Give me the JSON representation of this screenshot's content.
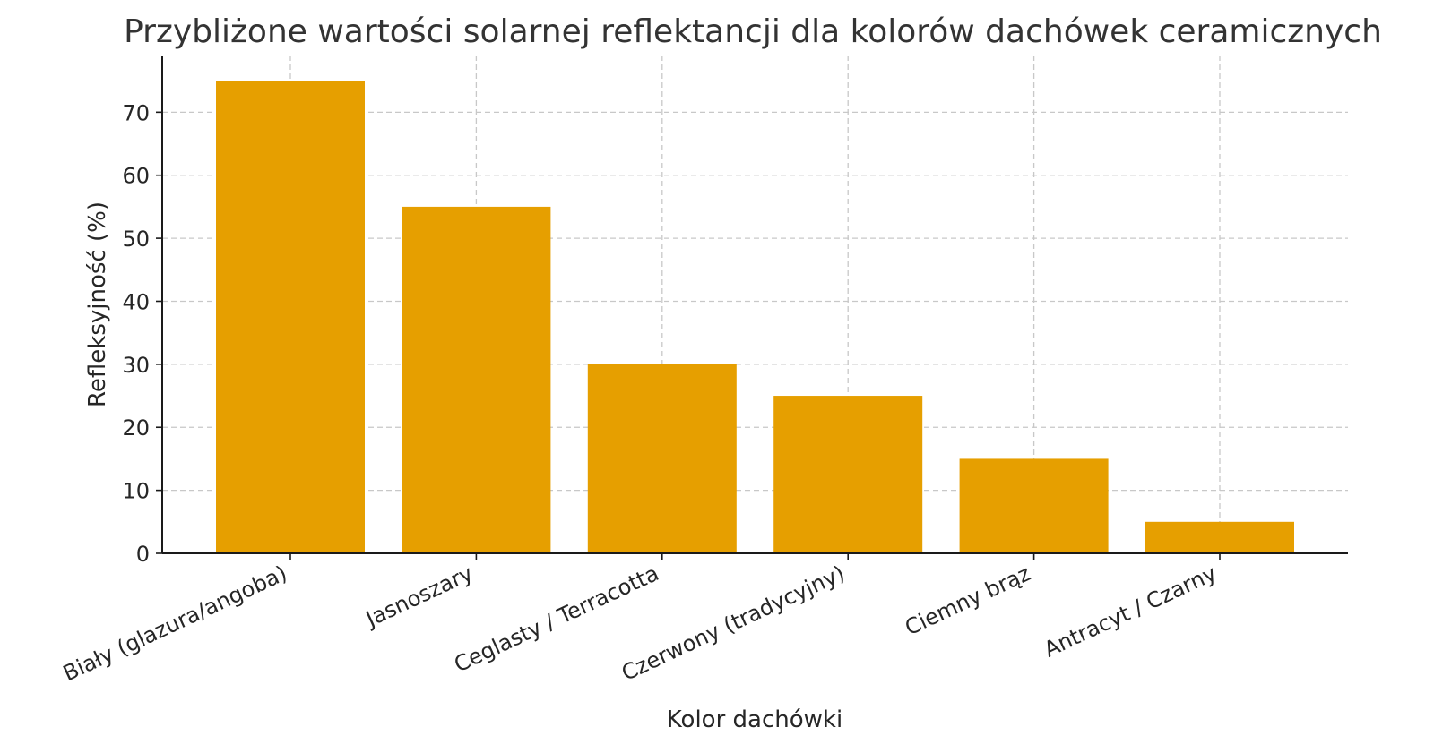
{
  "chart_data": {
    "type": "bar",
    "title": "Przybliżone wartości solarnej reflektancji dla kolorów dachówek ceramicznych",
    "xlabel": "Kolor dachówki",
    "ylabel": "Refleksyjność (%)",
    "categories": [
      "Biały (glazura/angoba)",
      "Jasnoszary",
      "Ceglasty / Terracotta",
      "Czerwony (tradycyjny)",
      "Ciemny brąz",
      "Antracyt / Czarny"
    ],
    "values": [
      75,
      55,
      30,
      25,
      15,
      5
    ],
    "ylim": [
      0,
      79
    ],
    "yticks": [
      0,
      10,
      20,
      30,
      40,
      50,
      60,
      70
    ],
    "grid": true,
    "bar_color": "#E69F00"
  }
}
